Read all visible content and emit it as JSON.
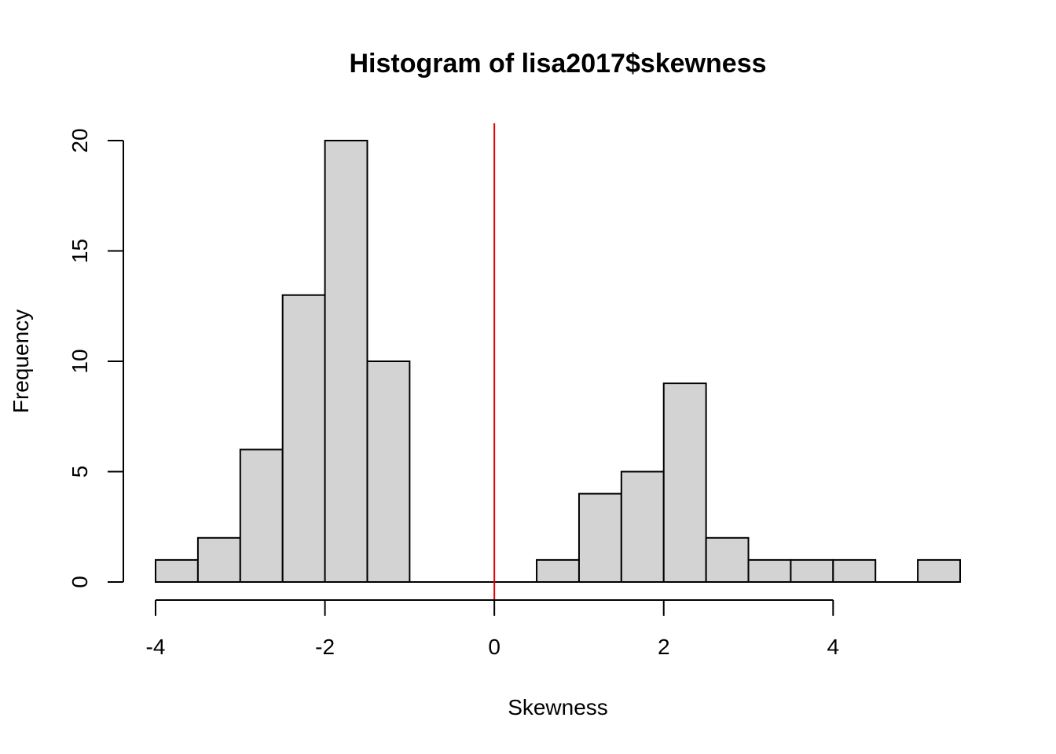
{
  "chart_data": {
    "type": "bar",
    "title": "Histogram of lisa2017$skewness",
    "xlabel": "Skewness",
    "ylabel": "Frequency",
    "bin_edges": [
      -4.0,
      -3.5,
      -3.0,
      -2.5,
      -2.0,
      -1.5,
      -1.0,
      -0.5,
      0.0,
      0.5,
      1.0,
      1.5,
      2.0,
      2.5,
      3.0,
      3.5,
      4.0,
      4.5,
      5.0,
      5.5
    ],
    "values": [
      1,
      2,
      6,
      13,
      20,
      10,
      0,
      0,
      0,
      1,
      4,
      5,
      9,
      2,
      1,
      1,
      1,
      0,
      1
    ],
    "xlim": [
      -4.0,
      5.5
    ],
    "ylim": [
      0,
      20
    ],
    "x_ticks": [
      -4,
      -2,
      0,
      2,
      4
    ],
    "x_tick_labels": [
      "-4",
      "-2",
      "0",
      "2",
      "4"
    ],
    "y_ticks": [
      0,
      5,
      10,
      15,
      20
    ],
    "y_tick_labels": [
      "0",
      "5",
      "10",
      "15",
      "20"
    ],
    "reference_line": {
      "x": 0,
      "color": "#e00000"
    },
    "bar_fill": "#d3d3d3",
    "bar_stroke": "#000000",
    "grid": false,
    "legend": "none"
  }
}
